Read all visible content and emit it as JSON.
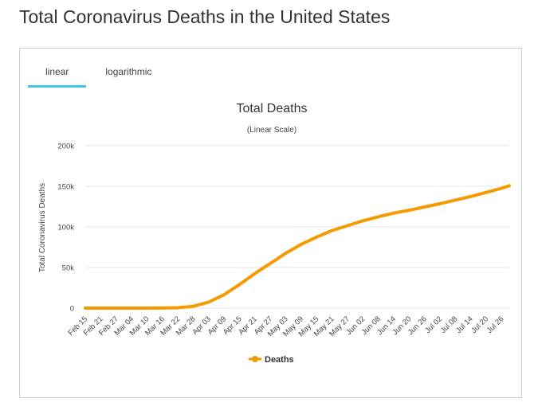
{
  "page": {
    "title": "Total Coronavirus Deaths in the United States"
  },
  "tabs": [
    {
      "label": "linear",
      "active": true
    },
    {
      "label": "logarithmic",
      "active": false
    }
  ],
  "colors": {
    "line": "#f59a00",
    "tab_active": "#44c4e6",
    "grid": "#e6e6e6"
  },
  "chart_data": {
    "type": "line",
    "title": "Total Deaths",
    "subtitle": "(Linear Scale)",
    "ylabel": "Total Coronavirus Deaths",
    "xlabel": "",
    "ylim": [
      0,
      200000
    ],
    "yticks": [
      0,
      50000,
      100000,
      150000,
      200000
    ],
    "ytick_labels": [
      "0",
      "50k",
      "100k",
      "150k",
      "200k"
    ],
    "grid": true,
    "legend_position": "bottom-center",
    "xtick_labels": [
      "Feb 15",
      "Feb 21",
      "Feb 27",
      "Mar 04",
      "Mar 10",
      "Mar 16",
      "Mar 22",
      "Mar 28",
      "Apr 03",
      "Apr 09",
      "Apr 15",
      "Apr 21",
      "Apr 27",
      "May 03",
      "May 09",
      "May 15",
      "May 21",
      "May 27",
      "Jun 02",
      "Jun 08",
      "Jun 14",
      "Jun 20",
      "Jun 26",
      "Jul 02",
      "Jul 08",
      "Jul 14",
      "Jul 20",
      "Jul 26"
    ],
    "series": [
      {
        "name": "Deaths",
        "color": "#f59a00",
        "points": [
          [
            "Feb 15",
            0
          ],
          [
            "Feb 21",
            0
          ],
          [
            "Feb 27",
            0
          ],
          [
            "Mar 04",
            11
          ],
          [
            "Mar 10",
            30
          ],
          [
            "Mar 16",
            100
          ],
          [
            "Mar 22",
            500
          ],
          [
            "Mar 28",
            2200
          ],
          [
            "Apr 03",
            7400
          ],
          [
            "Apr 09",
            16500
          ],
          [
            "Apr 15",
            29000
          ],
          [
            "Apr 21",
            42500
          ],
          [
            "Apr 27",
            55000
          ],
          [
            "May 03",
            67500
          ],
          [
            "May 09",
            78500
          ],
          [
            "May 15",
            87500
          ],
          [
            "May 21",
            95500
          ],
          [
            "May 27",
            101500
          ],
          [
            "Jun 02",
            107500
          ],
          [
            "Jun 08",
            112500
          ],
          [
            "Jun 14",
            117000
          ],
          [
            "Jun 20",
            120500
          ],
          [
            "Jun 26",
            124500
          ],
          [
            "Jul 02",
            128500
          ],
          [
            "Jul 08",
            133000
          ],
          [
            "Jul 14",
            137500
          ],
          [
            "Jul 20",
            142500
          ],
          [
            "Jul 26",
            147500
          ],
          [
            "Jul 29",
            150700
          ]
        ]
      }
    ]
  }
}
